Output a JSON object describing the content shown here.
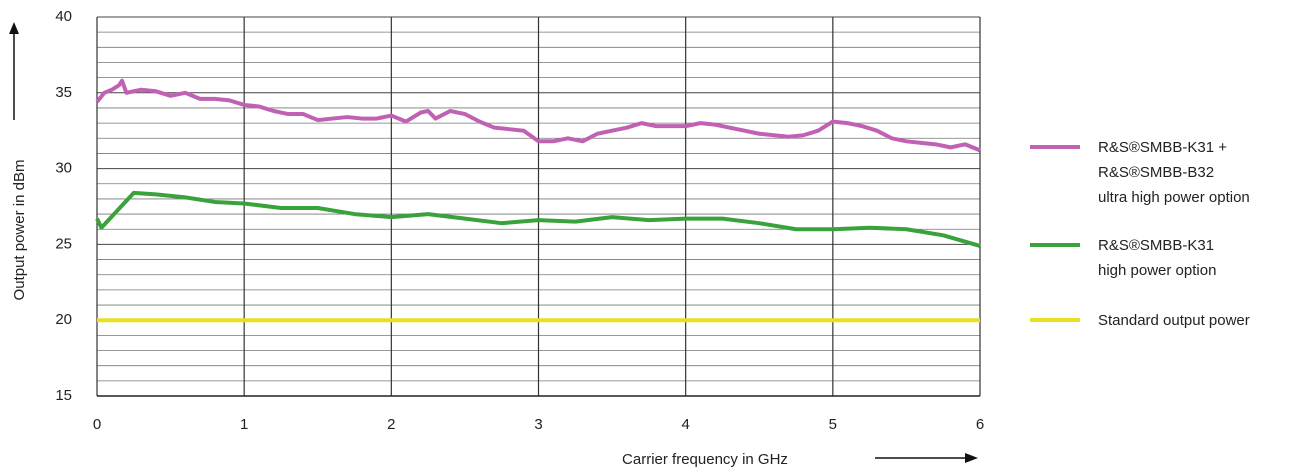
{
  "chart_data": {
    "type": "line",
    "x_label": "Carrier frequency in GHz",
    "y_label": "Output power in dBm",
    "xlim": [
      0,
      6
    ],
    "xticks": [
      0,
      1,
      2,
      3,
      4,
      5,
      6
    ],
    "ylim": [
      15,
      40
    ],
    "yticks": [
      15,
      20,
      25,
      30,
      35,
      40
    ],
    "yminorticks": [
      16,
      17,
      18,
      19,
      21,
      22,
      23,
      24,
      26,
      27,
      28,
      29,
      31,
      32,
      33,
      34,
      36,
      37,
      38,
      39
    ],
    "grid": true,
    "series": [
      {
        "name": "R&S®SMBB-K31 +\nR&S®SMBB-B32\nultra high power option",
        "color": "#c061b4",
        "x": [
          0,
          0.05,
          0.1,
          0.15,
          0.17,
          0.2,
          0.3,
          0.4,
          0.5,
          0.6,
          0.7,
          0.8,
          0.9,
          1.0,
          1.1,
          1.2,
          1.3,
          1.4,
          1.5,
          1.6,
          1.7,
          1.8,
          1.9,
          2.0,
          2.1,
          2.2,
          2.25,
          2.3,
          2.4,
          2.5,
          2.6,
          2.7,
          2.8,
          2.9,
          3.0,
          3.1,
          3.2,
          3.3,
          3.4,
          3.5,
          3.6,
          3.7,
          3.8,
          3.9,
          4.0,
          4.1,
          4.2,
          4.3,
          4.4,
          4.5,
          4.6,
          4.7,
          4.8,
          4.9,
          5.0,
          5.1,
          5.2,
          5.3,
          5.4,
          5.5,
          5.6,
          5.7,
          5.8,
          5.9,
          6.0
        ],
        "values": [
          34.4,
          35,
          35.2,
          35.5,
          35.8,
          35,
          35.2,
          35.1,
          34.8,
          35,
          34.6,
          34.6,
          34.5,
          34.2,
          34.1,
          33.8,
          33.6,
          33.6,
          33.2,
          33.3,
          33.4,
          33.3,
          33.3,
          33.5,
          33.1,
          33.7,
          33.8,
          33.3,
          33.8,
          33.6,
          33.1,
          32.7,
          32.6,
          32.5,
          31.8,
          31.8,
          32,
          31.8,
          32.3,
          32.5,
          32.7,
          33,
          32.8,
          32.8,
          32.8,
          33,
          32.9,
          32.7,
          32.5,
          32.3,
          32.2,
          32.1,
          32.2,
          32.5,
          33.1,
          33,
          32.8,
          32.5,
          32,
          31.8,
          31.7,
          31.6,
          31.4,
          31.6,
          31.2
        ]
      },
      {
        "name": "R&S®SMBB-K31\nhigh power option",
        "color": "#3aa23a",
        "x": [
          0,
          0.03,
          0.25,
          0.4,
          0.6,
          0.8,
          1.0,
          1.25,
          1.5,
          1.75,
          2.0,
          2.25,
          2.5,
          2.75,
          3.0,
          3.25,
          3.5,
          3.75,
          4.0,
          4.25,
          4.5,
          4.75,
          5.0,
          5.25,
          5.5,
          5.75,
          6.0
        ],
        "values": [
          26.7,
          26.1,
          28.4,
          28.3,
          28.1,
          27.8,
          27.7,
          27.4,
          27.4,
          27.0,
          26.8,
          27.0,
          26.7,
          26.4,
          26.6,
          26.5,
          26.8,
          26.6,
          26.7,
          26.7,
          26.4,
          26.0,
          26.0,
          26.1,
          26.0,
          25.6,
          24.9
        ]
      },
      {
        "name": "Standard output power",
        "color": "#e8e020",
        "x": [
          0,
          6
        ],
        "values": [
          20,
          20
        ]
      }
    ]
  }
}
